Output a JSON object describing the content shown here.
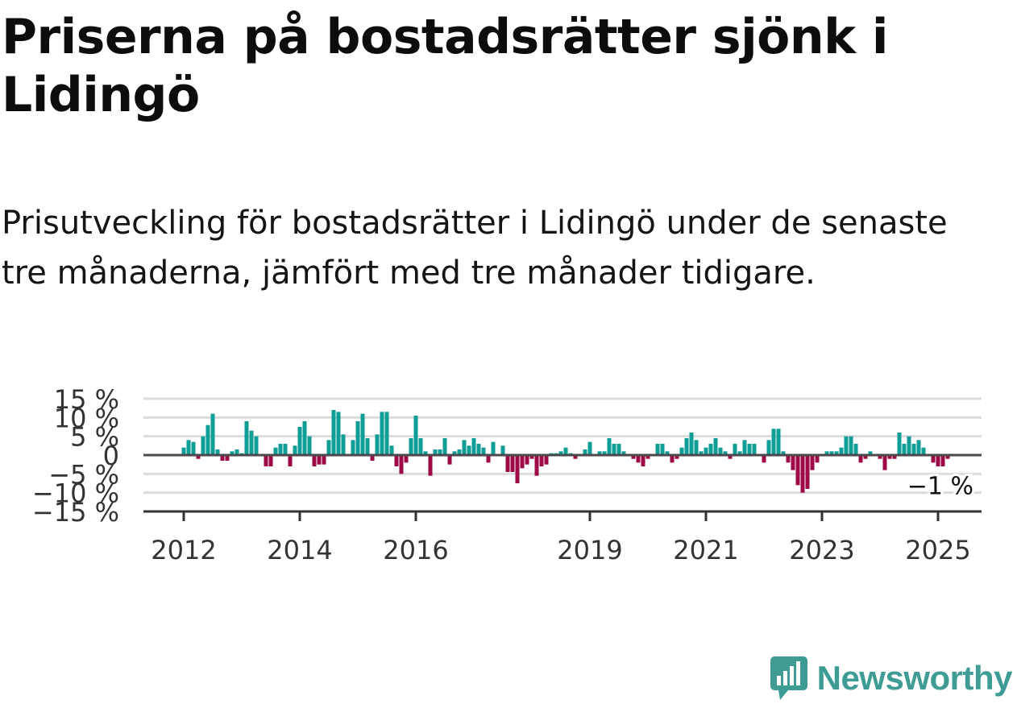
{
  "header": {
    "title": "Priserna på bostadsrätter sjönk i Lidingö",
    "subtitle": "Prisutveckling för bostadsrätter i Lidingö under de senaste tre månaderna, jämfört med tre månader tidigare."
  },
  "brand": {
    "name": "Newsworthy",
    "color": "#3e9c95",
    "logo_icon": "newsworthy-bar-chart-icon"
  },
  "colors": {
    "positive": "#0f9e97",
    "negative": "#9e0a45",
    "zero_line": "#4a4a4a",
    "grid": "#dcdcdc",
    "axis_text": "#333333"
  },
  "chart_data": {
    "type": "bar",
    "title": "",
    "xlabel": "",
    "ylabel": "",
    "ylim": [
      -15,
      15
    ],
    "y_ticks": [
      15,
      10,
      5,
      0,
      -5,
      -10,
      -15
    ],
    "y_tick_labels": [
      "15 %",
      "10 %",
      "5 %",
      "0",
      "−5 %",
      "−10 %",
      "−15 %"
    ],
    "x_ticks": [
      "2012",
      "2014",
      "2016",
      "2019",
      "2021",
      "2023",
      "2025"
    ],
    "grid": true,
    "last_value_label": "−1 %",
    "series": [
      {
        "start": "2012-01",
        "frequency": "monthly",
        "values": [
          2,
          4,
          3.5,
          -1,
          5,
          8,
          11,
          1.5,
          -1.5,
          -1.5,
          1,
          1.5,
          0.5,
          9,
          6.5,
          5,
          0,
          -3,
          -3,
          2,
          3,
          3,
          -3,
          2.5,
          7.5,
          9,
          5,
          -3,
          -2.5,
          -2.5,
          4,
          12,
          11.5,
          5.5,
          0,
          4,
          9,
          11,
          4.5,
          -1.5,
          5.5,
          11.5,
          11.5,
          2.5,
          -3,
          -5,
          -2,
          4.5,
          10.5,
          4.5,
          1,
          -5.5,
          1.5,
          1.5,
          4.5,
          -2.5,
          1,
          1.5,
          4,
          2.5,
          4.5,
          3,
          2,
          -2,
          3.5,
          0,
          2.5,
          -4.5,
          -4.5,
          -7.5,
          -3.5,
          -2.5,
          -1,
          -5.5,
          -3,
          -2.5,
          0.5,
          0.5,
          1,
          2,
          0.5,
          -1,
          0,
          1.5,
          3.5,
          0,
          1,
          1,
          4.5,
          3,
          3,
          1,
          0,
          -1,
          -2,
          -3,
          -1,
          0,
          3,
          3,
          1,
          -2,
          -1,
          2,
          4.5,
          6,
          4,
          1,
          2,
          3,
          4.5,
          2,
          1,
          -1,
          3,
          1,
          4,
          3,
          3,
          0,
          -2,
          4,
          7,
          7,
          1,
          -2,
          -4,
          -8,
          -10,
          -9,
          -4,
          -2,
          0,
          1,
          1,
          1,
          2,
          5,
          5,
          3,
          -2,
          -1,
          1,
          0,
          -1,
          -4,
          -1,
          -1,
          6,
          3,
          5,
          3,
          4,
          2,
          0,
          -2,
          -3,
          -3,
          -1
        ]
      }
    ]
  }
}
